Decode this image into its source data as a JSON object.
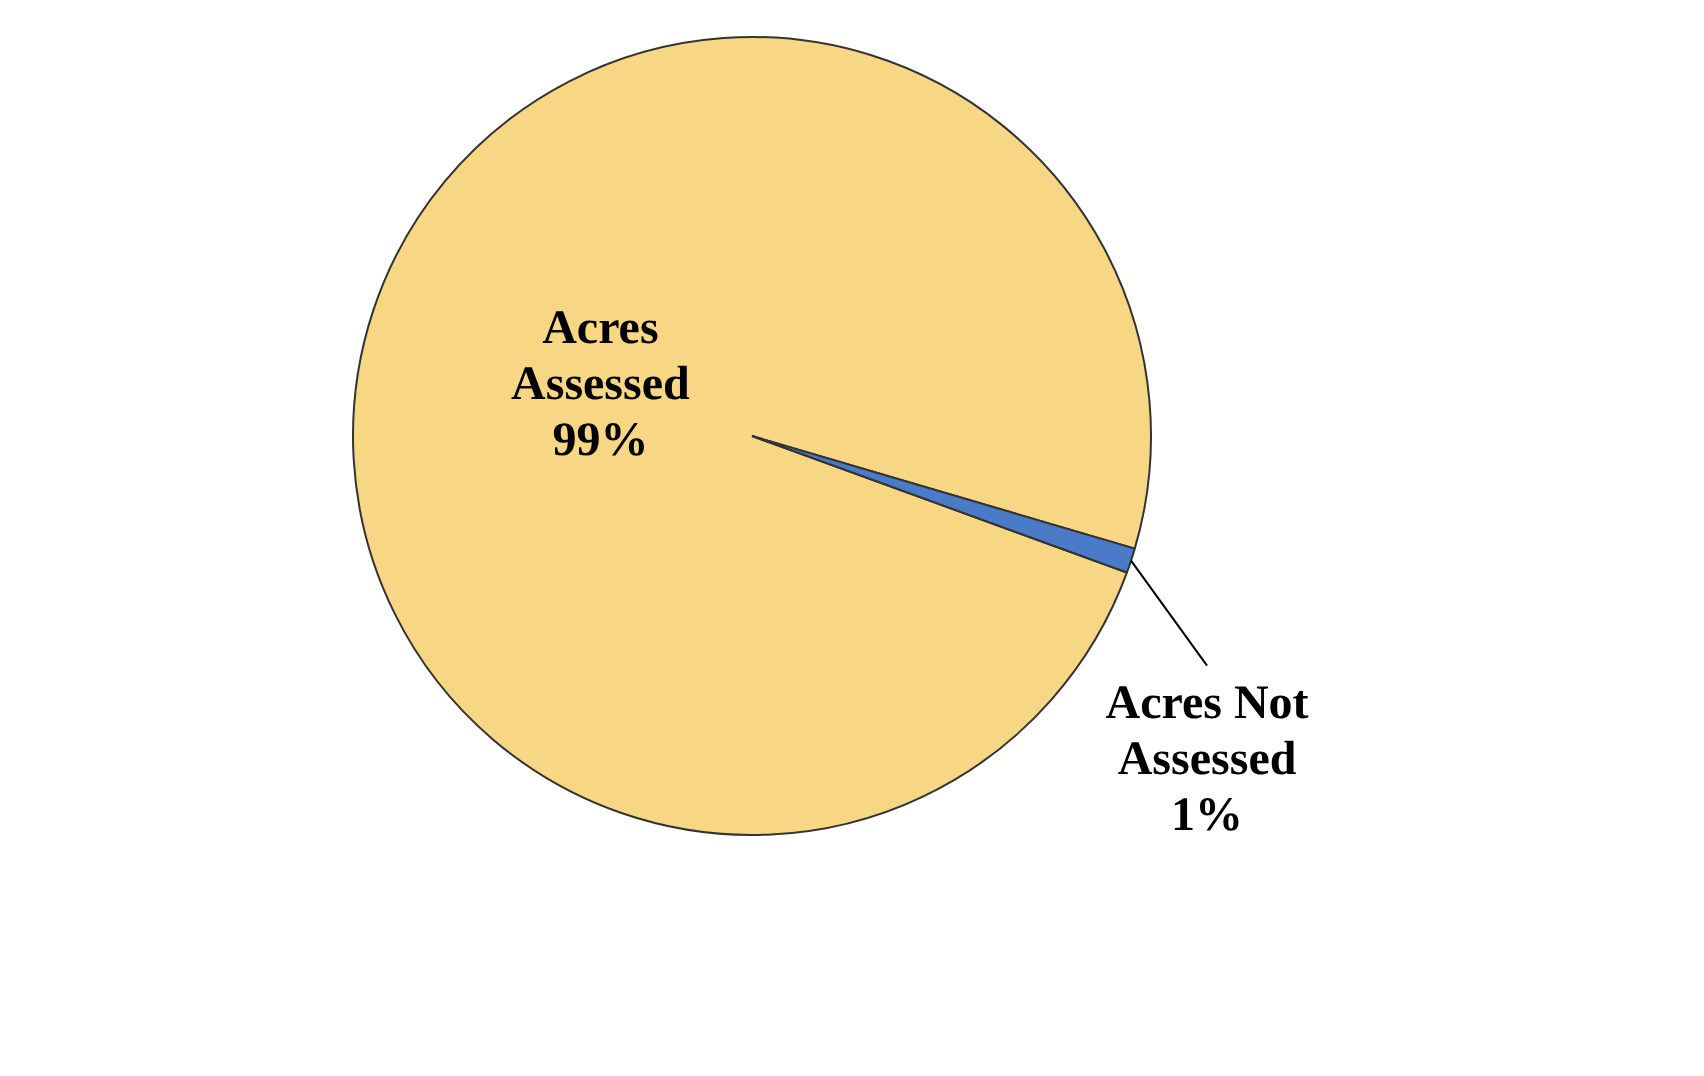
{
  "chart_data": {
    "type": "pie",
    "categories": [
      "Acres Assessed",
      "Acres Not Assessed"
    ],
    "values": [
      99,
      1
    ],
    "colors": [
      "#f7d783",
      "#4a7bc8"
    ],
    "value_labels": [
      "99%",
      "1%"
    ],
    "legend": false
  }
}
